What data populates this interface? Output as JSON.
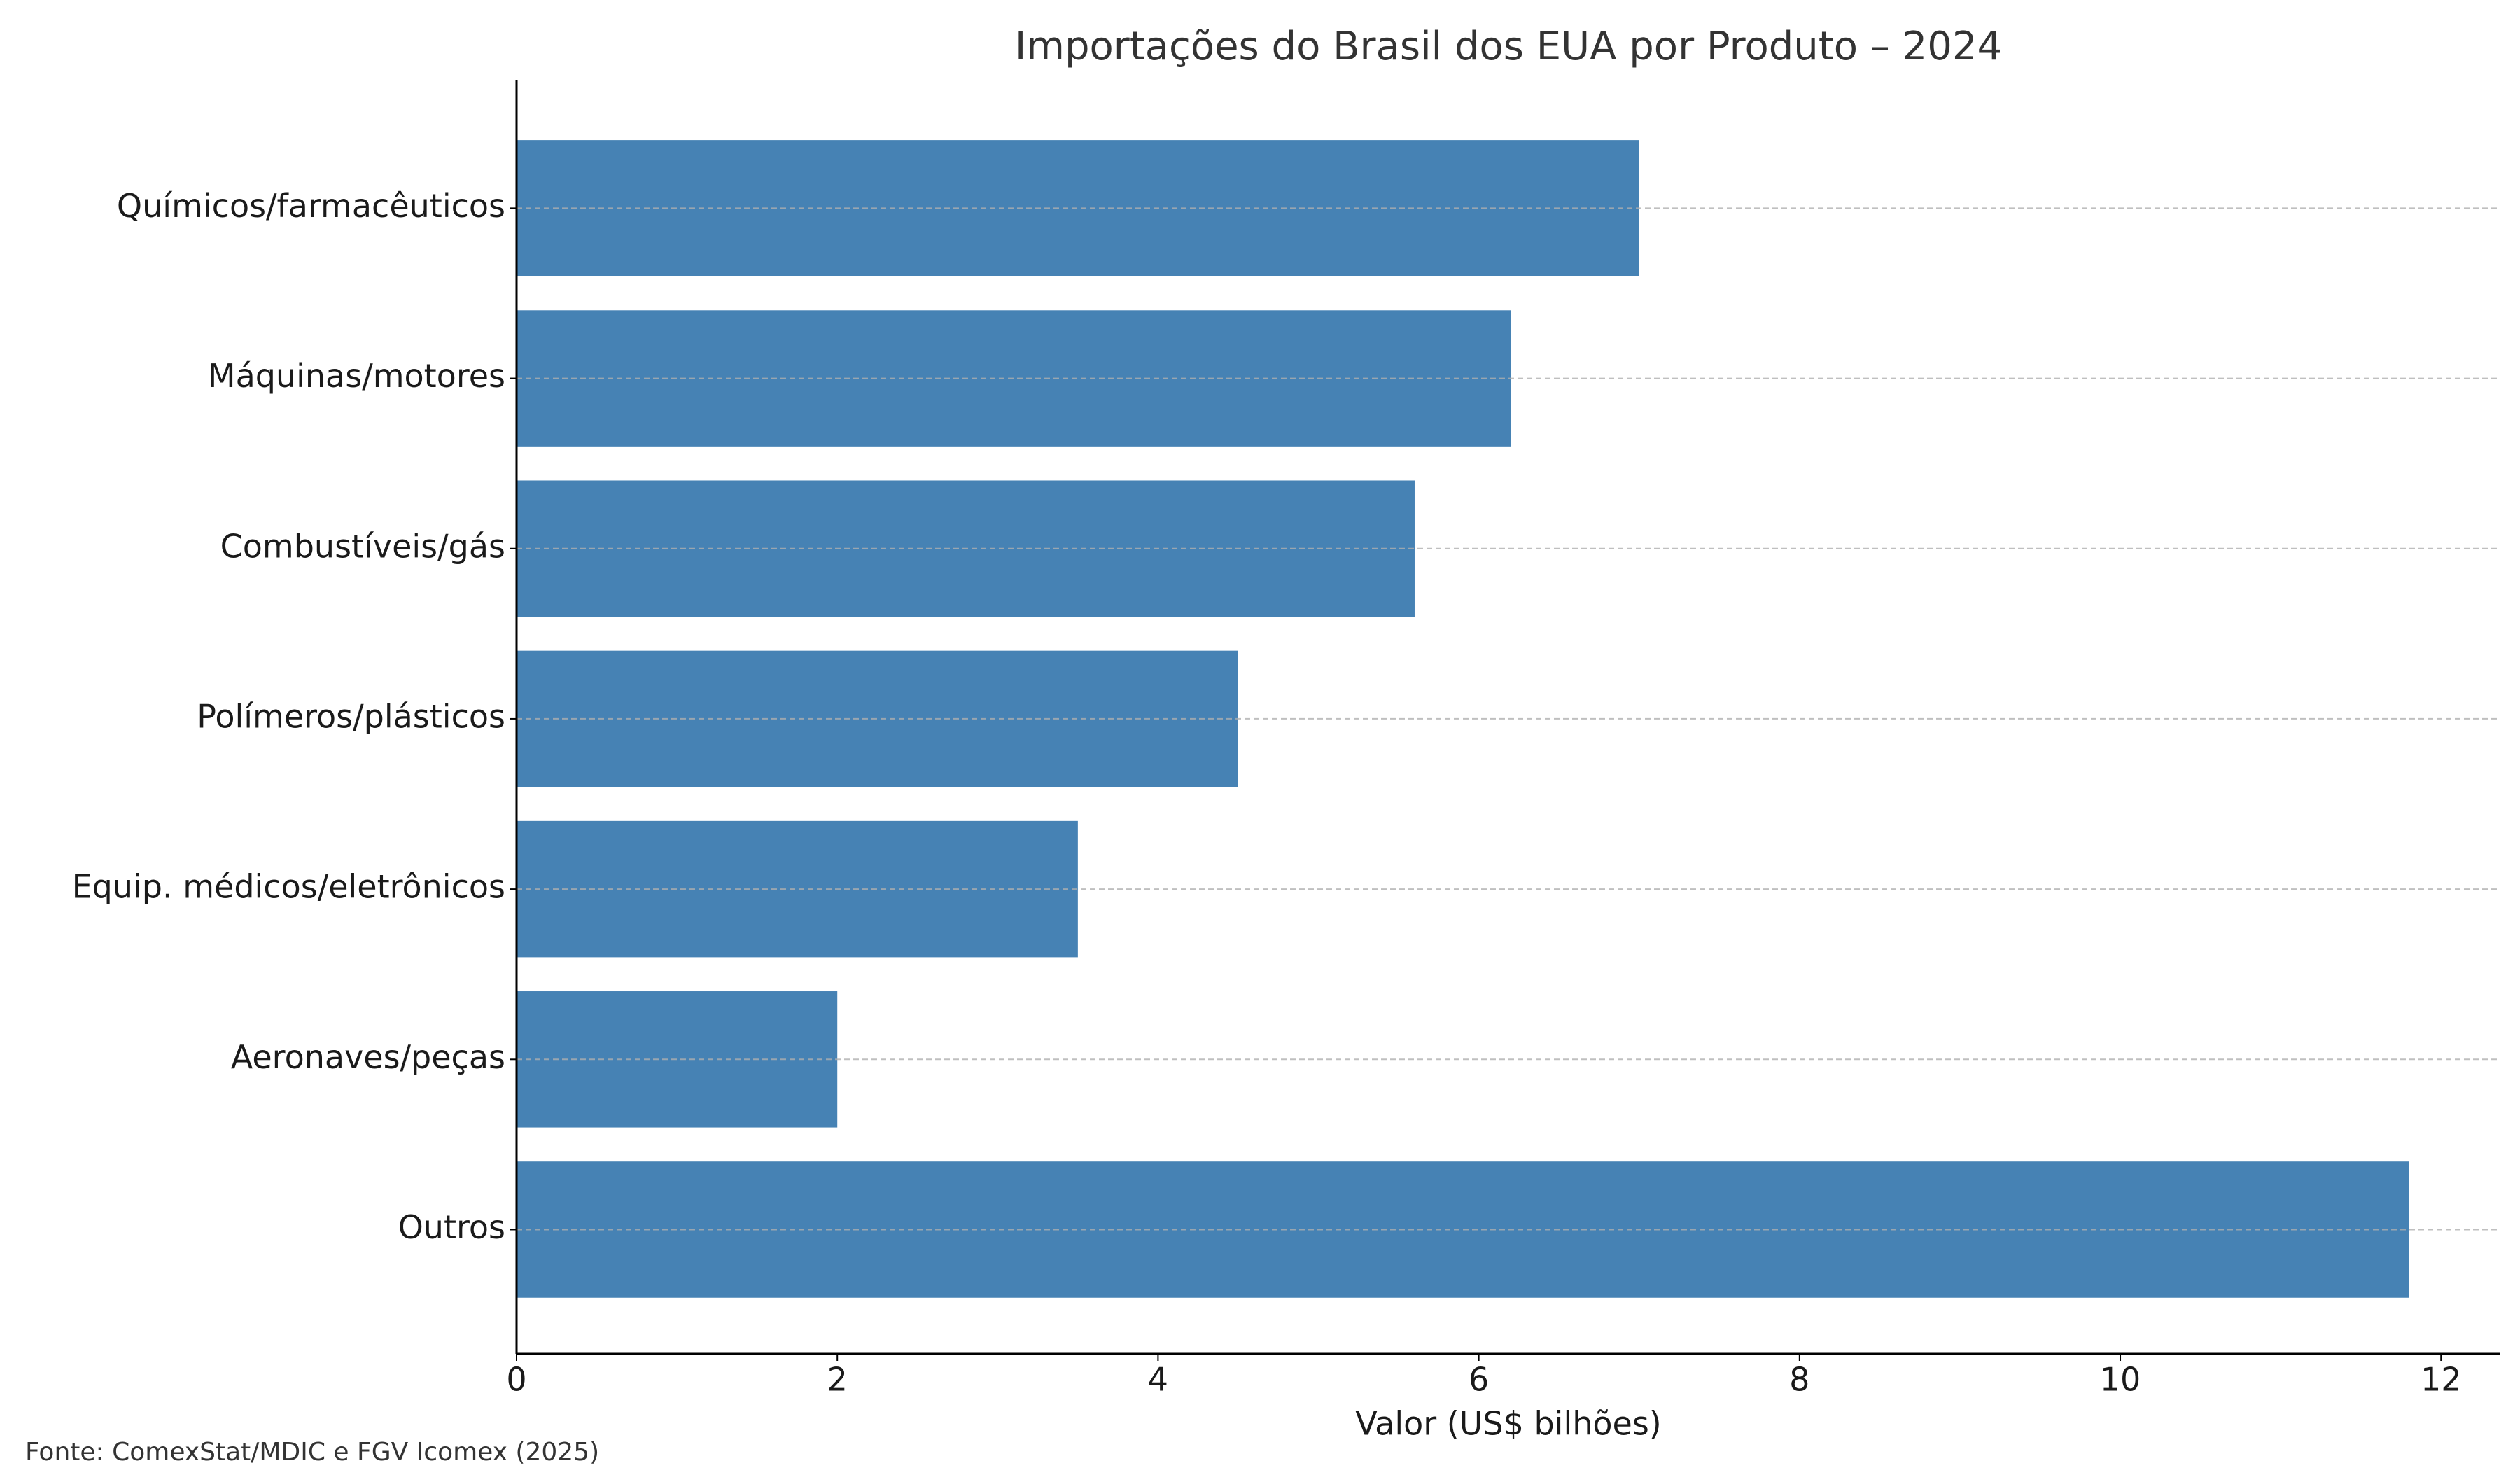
{
  "chart_data": {
    "type": "barh",
    "title": "Importações do Brasil dos EUA por Produto – 2024",
    "categories": [
      "Químicos/farmacêuticos",
      "Máquinas/motores",
      "Combustíveis/gás",
      "Polímeros/plásticos",
      "Equip. médicos/eletrônicos",
      "Aeronaves/peças",
      "Outros"
    ],
    "values": [
      7.0,
      6.2,
      5.6,
      4.5,
      3.5,
      2.0,
      11.8
    ],
    "color": "#4682b4",
    "xlabel": "Valor (US$ bilhões)",
    "xlim": [
      0,
      12.37
    ],
    "xticks": [
      0,
      2,
      4,
      6,
      8,
      10,
      12
    ],
    "grid": true,
    "source": "Fonte: ComexStat/MDIC e FGV Icomex (2025)"
  }
}
